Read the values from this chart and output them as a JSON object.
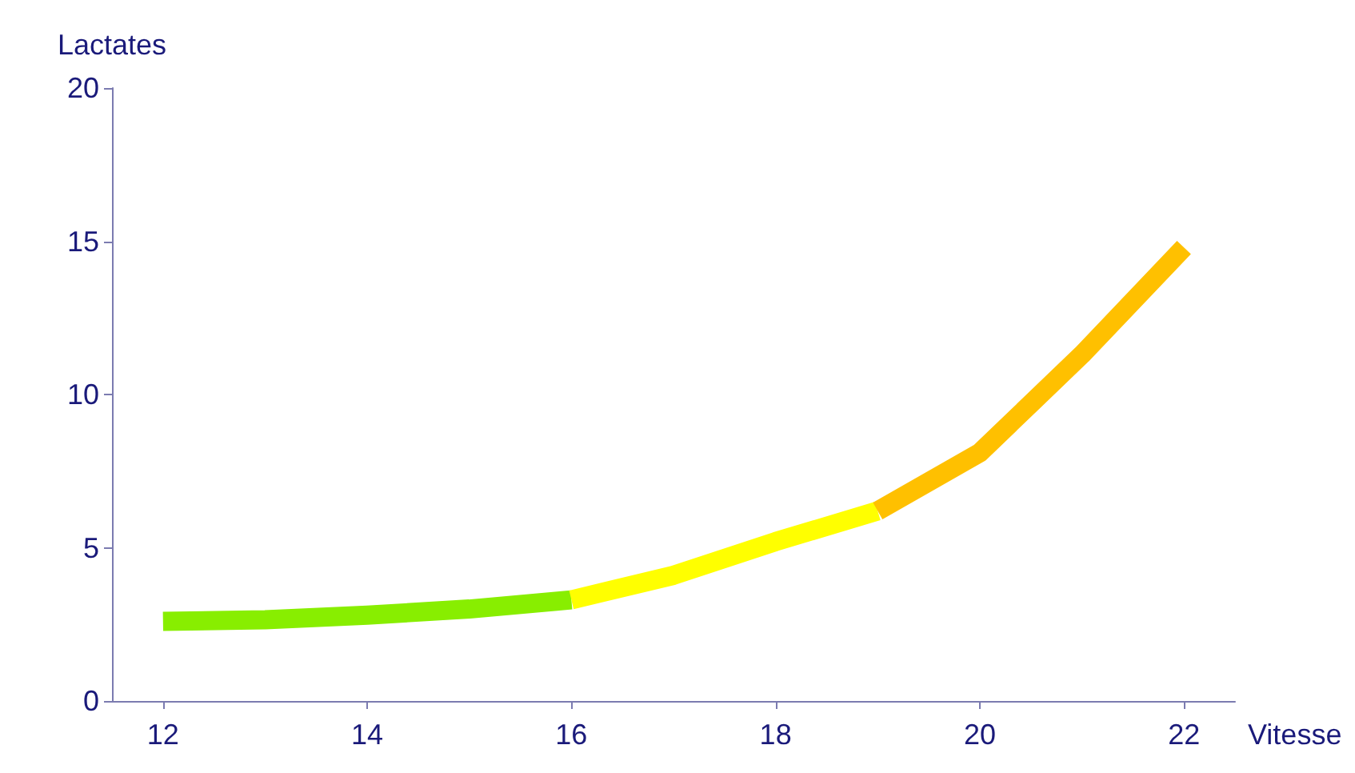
{
  "chart_data": {
    "type": "line",
    "xlabel": "Vitesse",
    "ylabel": "Lactates",
    "xlim": [
      11.5,
      22.5
    ],
    "xticks": [
      12,
      14,
      16,
      18,
      20,
      22
    ],
    "ylim": [
      0,
      20
    ],
    "yticks": [
      0,
      5,
      10,
      15,
      20
    ],
    "grid": false,
    "marker": "none",
    "series": [
      {
        "color": "#88ee00",
        "x": [
          12,
          13,
          14,
          15,
          16
        ],
        "values": [
          2.6,
          2.65,
          2.8,
          3.0,
          3.3
        ]
      },
      {
        "color": "#ffff00",
        "x": [
          16,
          17,
          18,
          19
        ],
        "values": [
          3.3,
          4.1,
          5.2,
          6.2
        ]
      },
      {
        "color": "#ffc000",
        "x": [
          19,
          20,
          21,
          22
        ],
        "values": [
          6.2,
          8.1,
          11.3,
          14.8
        ]
      }
    ]
  }
}
